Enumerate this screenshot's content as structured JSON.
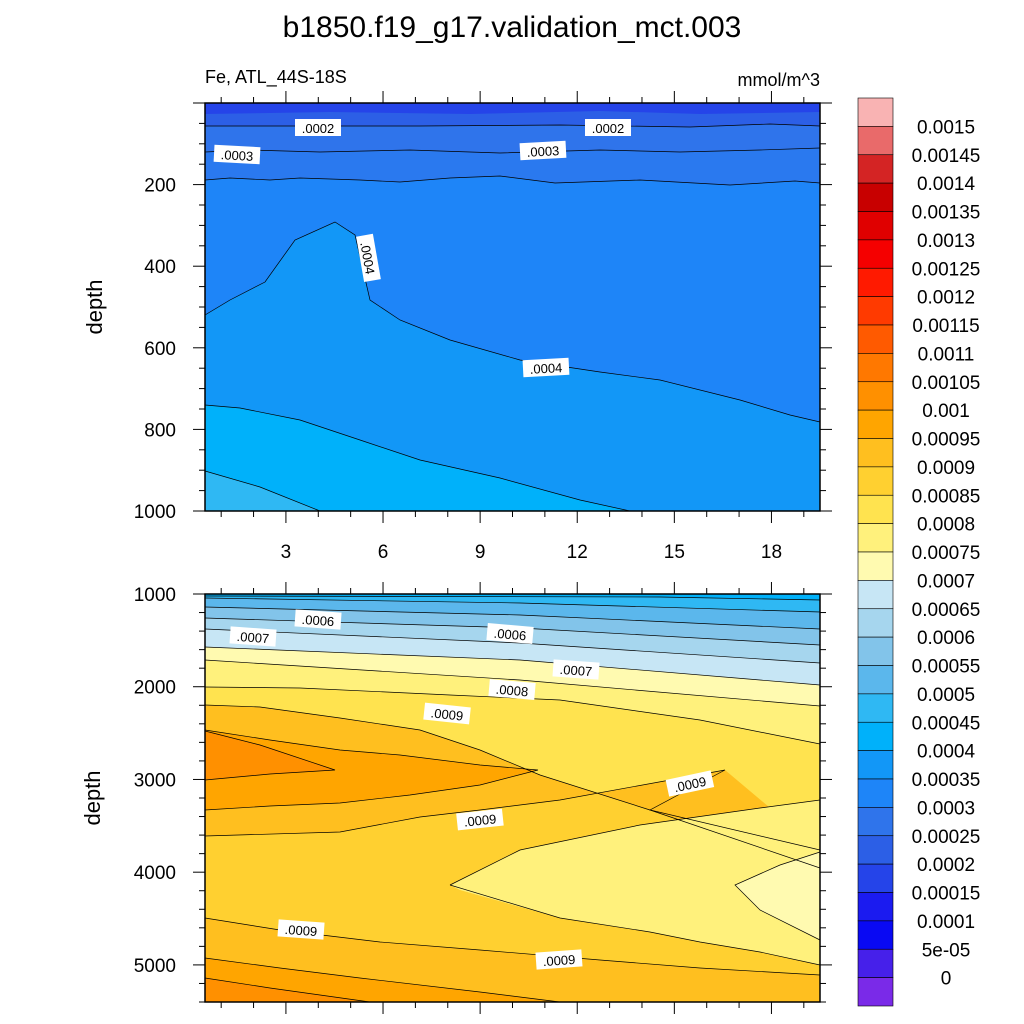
{
  "title": "b1850.f19_g17.validation_mct.003",
  "subtitle_left": "Fe, ATL_44S-18S",
  "subtitle_right": "mmol/m^3",
  "chart_data": [
    {
      "type": "heatmap",
      "panel": "upper",
      "ylabel": "depth",
      "xlim": [
        1,
        20
      ],
      "ylim": [
        0,
        1000
      ],
      "y_inverted": true,
      "xticks": [
        "3",
        "6",
        "9",
        "12",
        "15",
        "18"
      ],
      "yticks": [
        "200",
        "400",
        "600",
        "800",
        "1000"
      ],
      "contour_labels": [
        ".0002",
        ".0002",
        ".0003",
        ".0003",
        ".0004",
        ".0004"
      ]
    },
    {
      "type": "heatmap",
      "panel": "lower",
      "ylabel": "depth",
      "xlim": [
        1,
        20
      ],
      "ylim": [
        1000,
        5400
      ],
      "y_inverted": true,
      "yticks": [
        "1000",
        "2000",
        "3000",
        "4000",
        "5000"
      ],
      "contour_labels": [
        ".0006",
        ".0006",
        ".0007",
        ".0007",
        ".0008",
        ".0009",
        ".0009",
        ".0009",
        ".0009",
        ".0009"
      ]
    }
  ],
  "colorbar": {
    "labels": [
      "0.0015",
      "0.00145",
      "0.0014",
      "0.00135",
      "0.0013",
      "0.00125",
      "0.0012",
      "0.00115",
      "0.0011",
      "0.00105",
      "0.001",
      "0.00095",
      "0.0009",
      "0.00085",
      "0.0008",
      "0.00075",
      "0.0007",
      "0.00065",
      "0.0006",
      "0.00055",
      "0.0005",
      "0.00045",
      "0.0004",
      "0.00035",
      "0.0003",
      "0.00025",
      "0.0002",
      "0.00015",
      "0.0001",
      "5e-05",
      "0"
    ],
    "colors": [
      "#F9B3B3",
      "#E96A6A",
      "#D42424",
      "#C80000",
      "#E00000",
      "#F50000",
      "#FF1A00",
      "#FF3A00",
      "#FF5A00",
      "#FF7800",
      "#FF9000",
      "#FFA500",
      "#FFBF1F",
      "#FFD030",
      "#FFE34F",
      "#FFF17C",
      "#FFFAB0",
      "#C7E6F5",
      "#A6D6EE",
      "#82C4EA",
      "#5BB7EC",
      "#2FB8F3",
      "#00B1FA",
      "#1297F7",
      "#1E85F8",
      "#2F74EB",
      "#2C5FE6",
      "#2544E9",
      "#1B1BF0",
      "#0909F3",
      "#4620EA",
      "#7A2AE8"
    ]
  }
}
